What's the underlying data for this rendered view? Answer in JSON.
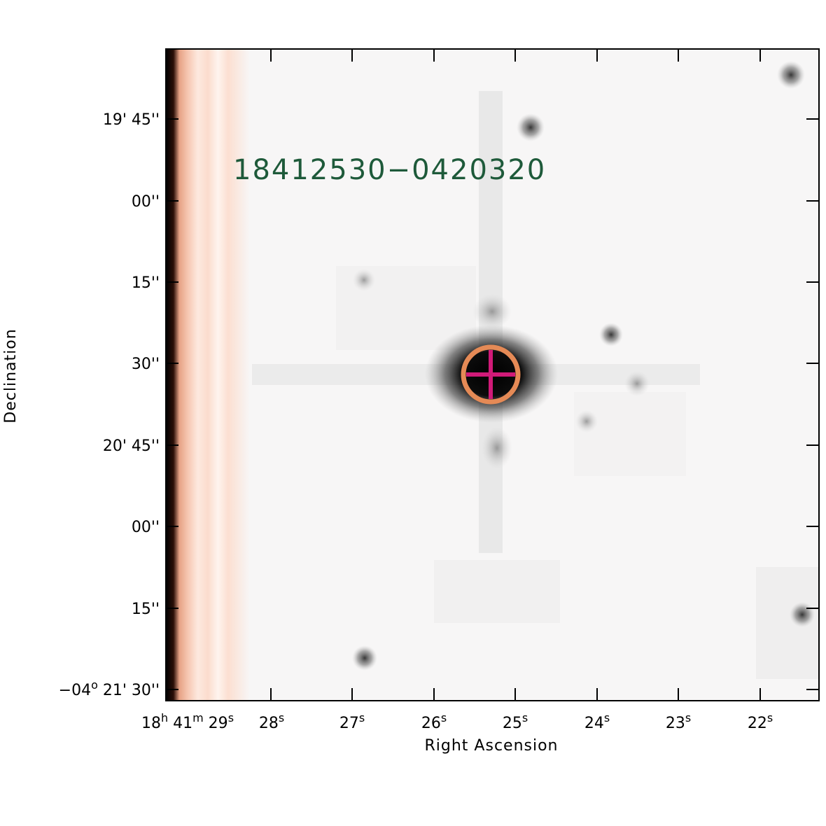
{
  "source_label": "18412530−0420320",
  "source_label_color": "#1e5a3a",
  "xlabel": "Right Ascension",
  "ylabel": "Declination",
  "colors": {
    "background": "#f7f6f6",
    "star": "#000000",
    "marker_circle": "#e58a56",
    "marker_cross": "#d01a78",
    "edge_stripe": "#f2b89f"
  },
  "dec_ticks": [
    {
      "parts": [
        {
          "t": "19' 45''"
        }
      ]
    },
    {
      "parts": [
        {
          "t": "00''"
        }
      ]
    },
    {
      "parts": [
        {
          "t": "15''"
        }
      ]
    },
    {
      "parts": [
        {
          "t": "30''"
        }
      ]
    },
    {
      "parts": [
        {
          "t": "20' 45''"
        }
      ]
    },
    {
      "parts": [
        {
          "t": "00''"
        }
      ]
    },
    {
      "parts": [
        {
          "t": "15''"
        }
      ]
    },
    {
      "parts": [
        {
          "t": "−04"
        },
        {
          "t": "o",
          "sup": true
        },
        {
          "t": " 21' 30''"
        }
      ]
    }
  ],
  "ra_ticks": [
    {
      "parts": [
        {
          "t": "18"
        },
        {
          "t": "h",
          "sup": true
        },
        {
          "t": " 41"
        },
        {
          "t": "m",
          "sup": true
        },
        {
          "t": " 29"
        },
        {
          "t": "s",
          "sup": true
        }
      ]
    },
    {
      "parts": [
        {
          "t": "28"
        },
        {
          "t": "s",
          "sup": true
        }
      ]
    },
    {
      "parts": [
        {
          "t": "27"
        },
        {
          "t": "s",
          "sup": true
        }
      ]
    },
    {
      "parts": [
        {
          "t": "26"
        },
        {
          "t": "s",
          "sup": true
        }
      ]
    },
    {
      "parts": [
        {
          "t": "25"
        },
        {
          "t": "s",
          "sup": true
        }
      ]
    },
    {
      "parts": [
        {
          "t": "24"
        },
        {
          "t": "s",
          "sup": true
        }
      ]
    },
    {
      "parts": [
        {
          "t": "23"
        },
        {
          "t": "s",
          "sup": true
        }
      ]
    },
    {
      "parts": [
        {
          "t": "22"
        },
        {
          "t": "s",
          "sup": true
        }
      ]
    }
  ]
}
